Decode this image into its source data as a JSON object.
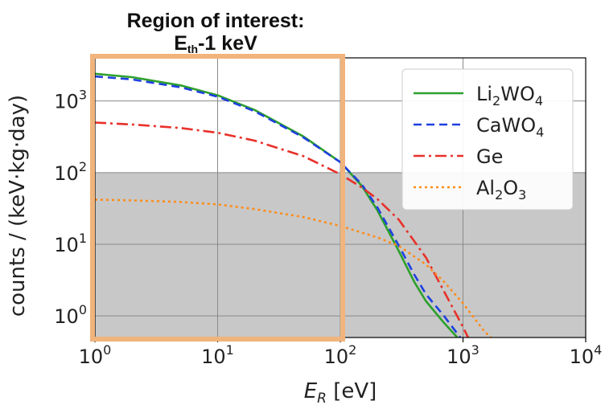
{
  "chart_data": {
    "type": "line",
    "annotation": {
      "title_line1": "Region of interest:",
      "title_line2_main": "E",
      "title_line2_sub": "th",
      "title_line2_rest": "-1 keV",
      "box_color": "#f0b47c",
      "x_range": [
        1,
        100
      ]
    },
    "ylabel": "counts / (keV·kg·day)",
    "xlabel": "E_R [eV]",
    "xlabel_main": "E",
    "xlabel_sub": "R",
    "xlabel_unit": " [eV]",
    "xscale": "log",
    "yscale": "log",
    "xlim": [
      1,
      10000
    ],
    "ylim": [
      0.5,
      4000
    ],
    "grid": true,
    "shaded_region": {
      "y_range": [
        0.5,
        100
      ],
      "color": "#c8c8c8"
    },
    "xticks": [
      {
        "value": 1,
        "base": "10",
        "exp": "0"
      },
      {
        "value": 10,
        "base": "10",
        "exp": "1"
      },
      {
        "value": 100,
        "base": "10",
        "exp": "2"
      },
      {
        "value": 1000,
        "base": "10",
        "exp": "3"
      },
      {
        "value": 10000,
        "base": "10",
        "exp": "4"
      }
    ],
    "yticks": [
      {
        "value": 1,
        "base": "10",
        "exp": "0"
      },
      {
        "value": 10,
        "base": "10",
        "exp": "1"
      },
      {
        "value": 100,
        "base": "10",
        "exp": "2"
      },
      {
        "value": 1000,
        "base": "10",
        "exp": "3"
      }
    ],
    "legend_position": "top-right",
    "series": [
      {
        "name": "Li2WO4",
        "label_parts": [
          [
            "Li",
            ""
          ],
          [
            "2",
            "sub"
          ],
          [
            "WO",
            ""
          ],
          [
            "4",
            "sub"
          ]
        ],
        "color": "#2ca02c",
        "dash": "",
        "x": [
          1,
          2,
          5,
          10,
          20,
          50,
          100,
          150,
          200,
          300,
          400,
          500,
          700,
          900
        ],
        "y": [
          2400,
          2150,
          1650,
          1200,
          750,
          320,
          140,
          65,
          30,
          8,
          3,
          1.6,
          0.8,
          0.5
        ]
      },
      {
        "name": "CaWO4",
        "label_parts": [
          [
            "CaWO",
            ""
          ],
          [
            "4",
            "sub"
          ]
        ],
        "color": "#1f3fe0",
        "dash": "10,6",
        "x": [
          1,
          2,
          5,
          10,
          20,
          50,
          100,
          150,
          200,
          300,
          400,
          500,
          700,
          950
        ],
        "y": [
          2200,
          2000,
          1550,
          1150,
          720,
          310,
          140,
          68,
          33,
          9.5,
          3.8,
          2,
          1,
          0.5
        ]
      },
      {
        "name": "Ge",
        "label_parts": [
          [
            "Ge",
            ""
          ]
        ],
        "color": "#e8312a",
        "dash": "14,5,3,5",
        "x": [
          1,
          2,
          5,
          10,
          20,
          50,
          100,
          150,
          200,
          300,
          500,
          700,
          1000,
          1100
        ],
        "y": [
          500,
          470,
          420,
          360,
          280,
          170,
          95,
          62,
          43,
          22,
          6.5,
          2.2,
          0.7,
          0.5
        ]
      },
      {
        "name": "Al2O3",
        "label_parts": [
          [
            "Al",
            ""
          ],
          [
            "2",
            "sub"
          ],
          [
            "O",
            ""
          ],
          [
            "3",
            "sub"
          ]
        ],
        "color": "#ff8c1a",
        "dash": "3,4",
        "x": [
          1,
          2,
          5,
          10,
          20,
          50,
          100,
          200,
          300,
          500,
          700,
          1000,
          1500,
          1700
        ],
        "y": [
          42,
          41,
          39,
          36,
          31,
          24,
          18,
          12.5,
          9.5,
          5.2,
          3,
          1.5,
          0.6,
          0.5
        ]
      }
    ]
  }
}
